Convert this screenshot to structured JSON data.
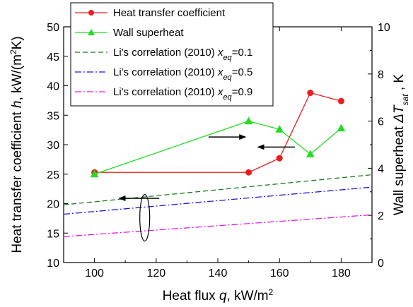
{
  "chart_data": {
    "type": "line",
    "xlabel": {
      "prefix": "Heat flux ",
      "var": "q",
      "suffix": ", kW/m",
      "sup": "2"
    },
    "ylabel": {
      "prefix": "Heat transfer coefficient ",
      "var": "h",
      "suffix": ", kW/(m",
      "sup": "2",
      "end": "K)"
    },
    "y2label": {
      "prefix": "Wall superheat  ",
      "var": "ΔT",
      "sub": "sat",
      "suffix": " , K"
    },
    "xlim": [
      90,
      190
    ],
    "ylim": [
      10,
      50
    ],
    "y2lim": [
      0,
      10
    ],
    "xticks": [
      "100",
      "120",
      "140",
      "160",
      "180"
    ],
    "yticks": [
      "10",
      "15",
      "20",
      "25",
      "30",
      "35",
      "40",
      "45",
      "50"
    ],
    "y2ticks": [
      "0",
      "2",
      "4",
      "6",
      "8",
      "10"
    ],
    "grid": false,
    "legend_position": "top-center",
    "series": [
      {
        "name": "Heat transfer coefficient",
        "axis": "left",
        "color": "#ee1c1c",
        "style": "solid",
        "marker": "circle",
        "x": [
          100,
          150,
          160,
          170,
          180
        ],
        "y": [
          25.3,
          25.3,
          27.7,
          38.8,
          37.4
        ]
      },
      {
        "name": "Wall superheat",
        "axis": "right",
        "color": "#22dd22",
        "style": "solid",
        "marker": "triangle",
        "x": [
          100,
          150,
          160,
          170,
          180
        ],
        "y": [
          3.75,
          6.0,
          5.65,
          4.6,
          5.7
        ]
      },
      {
        "name": "Li's correlation (2010) ",
        "var": "x",
        "sub": "eq",
        "tail": "=0.1",
        "axis": "left",
        "color": "#1a7a1a",
        "style": "dash",
        "x": [
          90,
          190
        ],
        "y": [
          19.8,
          24.9
        ]
      },
      {
        "name": "Li's correlation (2010) ",
        "var": "x",
        "sub": "eq",
        "tail": "=0.5",
        "axis": "left",
        "color": "#1a1ad8",
        "style": "dashdot",
        "x": [
          90,
          190
        ],
        "y": [
          18.2,
          22.8
        ]
      },
      {
        "name": "Li's correlation (2010) ",
        "var": "x",
        "sub": "eq",
        "tail": "=0.9",
        "axis": "left",
        "color": "#e01ce0",
        "style": "dashdot",
        "x": [
          90,
          190
        ],
        "y": [
          14.4,
          18.1
        ]
      }
    ]
  }
}
